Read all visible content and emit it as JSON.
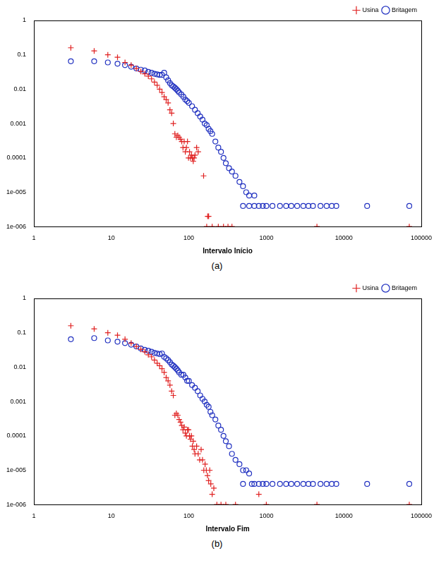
{
  "chart_data": [
    {
      "type": "scatter",
      "caption": "(a)",
      "x_label": "Intervalo Início",
      "log": true,
      "grid": false,
      "legend": "upper right",
      "xlim": [
        1,
        100000
      ],
      "xticks": [
        1,
        10,
        100,
        1000,
        10000,
        100000
      ],
      "ylim": [
        1e-06,
        1
      ],
      "yticks": [
        {
          "value": 1e-06,
          "label": "1e-006"
        },
        {
          "value": 1e-05,
          "label": "1e-005"
        },
        0.0001,
        0.001,
        0.01,
        0.1,
        1
      ],
      "series": [
        {
          "name": "Usina",
          "color": "#e02020",
          "marker": "plus",
          "x": [
            3,
            6,
            9,
            12,
            15,
            18,
            21,
            24,
            27,
            30,
            33,
            36,
            39,
            42,
            45,
            48,
            51,
            54,
            57,
            60,
            63,
            66,
            69,
            72,
            75,
            78,
            81,
            84,
            87,
            90,
            93,
            96,
            99,
            102,
            105,
            108,
            111,
            114,
            117,
            120,
            126,
            132,
            155,
            170,
            175,
            180,
            200,
            240,
            280,
            320,
            360,
            4500,
            70000
          ],
          "values": [
            0.16,
            0.13,
            0.1,
            0.085,
            0.06,
            0.05,
            0.04,
            0.033,
            0.028,
            0.024,
            0.02,
            0.016,
            0.013,
            0.01,
            0.008,
            0.006,
            0.005,
            0.004,
            0.0025,
            0.002,
            0.001,
            0.0005,
            0.0004,
            0.00045,
            0.0004,
            0.00035,
            0.0003,
            0.0002,
            0.0003,
            0.00015,
            0.0002,
            0.0003,
            0.0001,
            0.00015,
            0.0001,
            0.00012,
            0.0001,
            8e-05,
            0.0001,
            0.00012,
            0.0002,
            0.00015,
            3e-05,
            1e-06,
            2e-06,
            2e-06,
            1e-06,
            1e-06,
            1e-06,
            1e-06,
            1e-06,
            1e-06,
            1e-06
          ]
        },
        {
          "name": "Britagem",
          "color": "#2030c0",
          "marker": "circle",
          "x": [
            3,
            6,
            9,
            12,
            15,
            18,
            21,
            24,
            27,
            30,
            33,
            36,
            39,
            42,
            45,
            48,
            51,
            54,
            57,
            60,
            63,
            66,
            69,
            72,
            75,
            80,
            85,
            90,
            95,
            100,
            110,
            120,
            130,
            140,
            150,
            160,
            170,
            180,
            190,
            200,
            220,
            240,
            260,
            280,
            300,
            330,
            360,
            400,
            450,
            500,
            550,
            600,
            700,
            800,
            500,
            600,
            700,
            900,
            1000,
            1200,
            1500,
            1800,
            2100,
            2500,
            3000,
            3500,
            4000,
            5000,
            6000,
            7000,
            8000,
            20000,
            70000
          ],
          "values": [
            0.065,
            0.065,
            0.06,
            0.055,
            0.05,
            0.045,
            0.04,
            0.037,
            0.035,
            0.032,
            0.03,
            0.028,
            0.027,
            0.026,
            0.026,
            0.03,
            0.022,
            0.018,
            0.015,
            0.013,
            0.012,
            0.011,
            0.01,
            0.009,
            0.008,
            0.007,
            0.006,
            0.005,
            0.0045,
            0.004,
            0.0032,
            0.0025,
            0.002,
            0.0016,
            0.0013,
            0.001,
            0.0009,
            0.0007,
            0.0006,
            0.0005,
            0.0003,
            0.0002,
            0.00015,
            0.0001,
            7e-05,
            5e-05,
            4e-05,
            3e-05,
            2e-05,
            1.5e-05,
            1e-05,
            8e-06,
            8e-06,
            4e-06,
            4e-06,
            4e-06,
            4e-06,
            4e-06,
            4e-06,
            4e-06,
            4e-06,
            4e-06,
            4e-06,
            4e-06,
            4e-06,
            4e-06,
            4e-06,
            4e-06,
            4e-06,
            4e-06,
            4e-06,
            4e-06,
            4e-06
          ]
        }
      ]
    },
    {
      "type": "scatter",
      "caption": "(b)",
      "x_label": "Intervalo Fim",
      "log": true,
      "grid": false,
      "legend": "upper right",
      "xlim": [
        1,
        100000
      ],
      "xticks": [
        1,
        10,
        100,
        1000,
        10000,
        100000
      ],
      "ylim": [
        1e-06,
        1
      ],
      "yticks": [
        {
          "value": 1e-06,
          "label": "1e-006"
        },
        {
          "value": 1e-05,
          "label": "1e-005"
        },
        0.0001,
        0.001,
        0.01,
        0.1,
        1
      ],
      "series": [
        {
          "name": "Usina",
          "color": "#e02020",
          "marker": "plus",
          "x": [
            3,
            6,
            9,
            12,
            15,
            18,
            21,
            24,
            27,
            30,
            33,
            36,
            39,
            42,
            45,
            48,
            51,
            54,
            57,
            60,
            63,
            66,
            69,
            72,
            75,
            78,
            81,
            84,
            87,
            90,
            93,
            96,
            99,
            102,
            105,
            108,
            111,
            114,
            117,
            120,
            126,
            132,
            138,
            144,
            150,
            156,
            162,
            168,
            174,
            180,
            186,
            192,
            200,
            210,
            230,
            260,
            300,
            400,
            800,
            1000,
            4500,
            70000
          ],
          "values": [
            0.16,
            0.13,
            0.1,
            0.085,
            0.065,
            0.05,
            0.04,
            0.033,
            0.028,
            0.023,
            0.02,
            0.016,
            0.013,
            0.011,
            0.009,
            0.007,
            0.005,
            0.004,
            0.003,
            0.002,
            0.0015,
            0.0004,
            0.00045,
            0.0004,
            0.0003,
            0.00025,
            0.0002,
            0.00015,
            0.00018,
            0.00012,
            0.0001,
            0.00015,
            0.00015,
            0.0001,
            8e-05,
            0.0001,
            5e-05,
            7e-05,
            4e-05,
            3e-05,
            5e-05,
            3e-05,
            2e-05,
            4e-05,
            2e-05,
            1e-05,
            1.5e-05,
            1e-05,
            7e-06,
            5e-06,
            1e-05,
            4e-06,
            2e-06,
            3e-06,
            1e-06,
            1e-06,
            1e-06,
            1e-06,
            2e-06,
            1e-06,
            1e-06,
            1e-06
          ]
        },
        {
          "name": "Britagem",
          "color": "#2030c0",
          "marker": "circle",
          "x": [
            3,
            6,
            9,
            12,
            15,
            18,
            21,
            24,
            27,
            30,
            33,
            36,
            39,
            42,
            45,
            48,
            51,
            54,
            57,
            60,
            63,
            66,
            69,
            72,
            75,
            80,
            85,
            90,
            95,
            100,
            110,
            120,
            130,
            140,
            150,
            160,
            170,
            180,
            190,
            200,
            220,
            240,
            260,
            280,
            300,
            330,
            360,
            400,
            450,
            500,
            550,
            600,
            700,
            500,
            650,
            800,
            900,
            1000,
            1200,
            1500,
            1800,
            2100,
            2500,
            3000,
            3500,
            4000,
            5000,
            6000,
            7000,
            8000,
            20000,
            70000
          ],
          "values": [
            0.065,
            0.07,
            0.06,
            0.055,
            0.05,
            0.045,
            0.04,
            0.035,
            0.032,
            0.03,
            0.028,
            0.026,
            0.025,
            0.024,
            0.025,
            0.02,
            0.018,
            0.016,
            0.014,
            0.012,
            0.011,
            0.01,
            0.009,
            0.008,
            0.007,
            0.006,
            0.006,
            0.005,
            0.004,
            0.004,
            0.003,
            0.0025,
            0.002,
            0.0015,
            0.0012,
            0.001,
            0.0008,
            0.0007,
            0.0005,
            0.0004,
            0.0003,
            0.0002,
            0.00015,
            0.0001,
            7e-05,
            5e-05,
            3e-05,
            2e-05,
            1.5e-05,
            1e-05,
            1e-05,
            8e-06,
            4e-06,
            4e-06,
            4e-06,
            4e-06,
            4e-06,
            4e-06,
            4e-06,
            4e-06,
            4e-06,
            4e-06,
            4e-06,
            4e-06,
            4e-06,
            4e-06,
            4e-06,
            4e-06,
            4e-06,
            4e-06,
            4e-06,
            4e-06
          ]
        }
      ]
    }
  ]
}
